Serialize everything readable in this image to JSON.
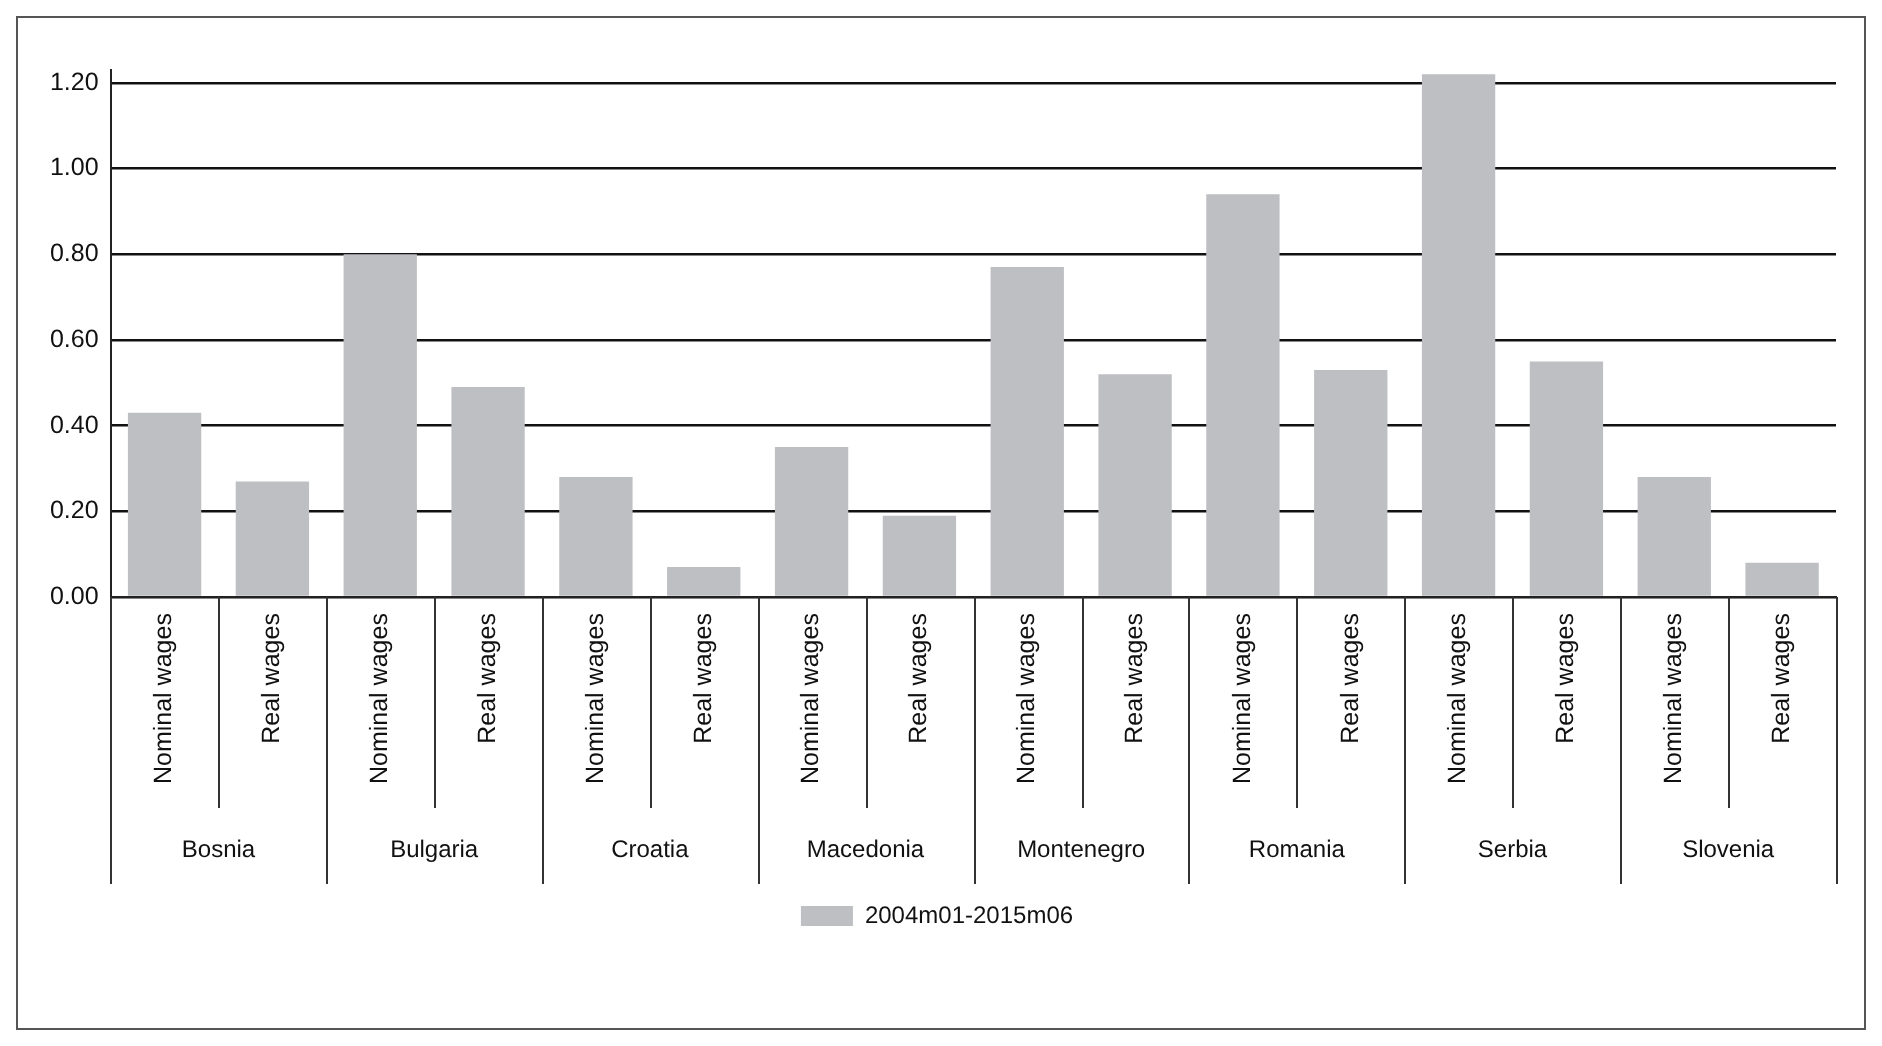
{
  "chart_data": {
    "type": "bar",
    "categories": [
      "Nominal wages",
      "Real wages",
      "Nominal wages",
      "Real wages",
      "Nominal wages",
      "Real wages",
      "Nominal wages",
      "Real wages",
      "Nominal wages",
      "Real wages",
      "Nominal wages",
      "Real wages",
      "Nominal wages",
      "Real wages",
      "Nominal wages",
      "Real wages"
    ],
    "series": [
      {
        "name": "2004m01-2015m06",
        "color": "#bebfc3",
        "values": [
          0.43,
          0.27,
          0.8,
          0.49,
          0.28,
          0.07,
          0.35,
          0.19,
          0.77,
          0.52,
          0.94,
          0.53,
          1.22,
          0.55,
          0.28,
          0.08
        ]
      }
    ],
    "annotations": [
      "Bosnia",
      "Bulgaria",
      "Croatia",
      "Macedonia",
      "Montenegro",
      "Romania",
      "Serbia",
      "Slovenia"
    ],
    "ylim": [
      0,
      1.23
    ],
    "yticks": [
      {
        "value": 0,
        "label": "0.00"
      },
      {
        "value": 0.2,
        "label": "0.20"
      },
      {
        "value": 0.4,
        "label": "0.40"
      },
      {
        "value": 0.6,
        "label": "0.60"
      },
      {
        "value": 0.8,
        "label": "0.80"
      },
      {
        "value": 1,
        "label": "1.00"
      },
      {
        "value": 1.2,
        "label": "1.20"
      }
    ],
    "grid": "y",
    "legend": "bottom"
  }
}
